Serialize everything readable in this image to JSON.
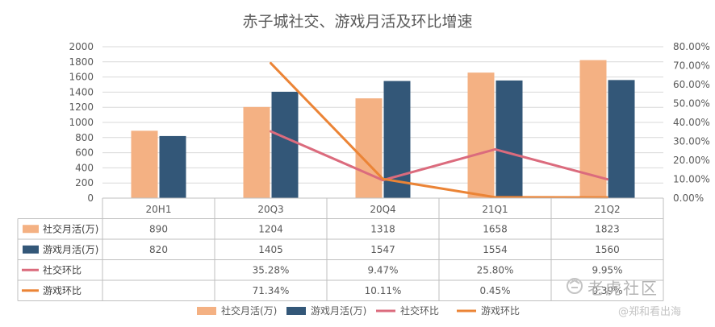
{
  "chart_data": {
    "type": "bar",
    "title": "赤子城社交、游戏月活及环比增速",
    "categories": [
      "20H1",
      "20Q3",
      "20Q4",
      "21Q1",
      "21Q2"
    ],
    "y_left": {
      "min": 0,
      "max": 2000,
      "step": 200,
      "ticks": [
        "0",
        "200",
        "400",
        "600",
        "800",
        "1000",
        "1200",
        "1400",
        "1600",
        "1800",
        "2000"
      ]
    },
    "y_right": {
      "min": 0,
      "max": 80,
      "step": 10,
      "ticks": [
        "0.00%",
        "10.00%",
        "20.00%",
        "30.00%",
        "40.00%",
        "50.00%",
        "60.00%",
        "70.00%",
        "80.00%"
      ]
    },
    "bar_series": [
      {
        "name": "社交月活(万)",
        "color": "#F4B183",
        "values": [
          890,
          1204,
          1318,
          1658,
          1823
        ],
        "labels": [
          "890",
          "1204",
          "1318",
          "1658",
          "1823"
        ]
      },
      {
        "name": "游戏月活(万)",
        "color": "#335778",
        "values": [
          820,
          1405,
          1547,
          1554,
          1560
        ],
        "labels": [
          "820",
          "1405",
          "1547",
          "1554",
          "1560"
        ]
      }
    ],
    "line_series": [
      {
        "name": "社交环比",
        "color": "#DB6B7D",
        "values": [
          null,
          35.28,
          9.47,
          25.8,
          9.95
        ],
        "labels": [
          "",
          "35.28%",
          "9.47%",
          "25.80%",
          "9.95%"
        ]
      },
      {
        "name": "游戏环比",
        "color": "#EB8436",
        "values": [
          null,
          71.34,
          10.11,
          0.45,
          0.39
        ],
        "labels": [
          "",
          "71.34%",
          "10.11%",
          "0.45%",
          "0.39%"
        ]
      }
    ],
    "legend": [
      "社交月活(万)",
      "游戏月活(万)",
      "社交环比",
      "游戏环比"
    ],
    "legend_position": "bottom",
    "grid": true
  },
  "watermark": {
    "brand": "老虎社区",
    "author": "@郑和看出海"
  }
}
